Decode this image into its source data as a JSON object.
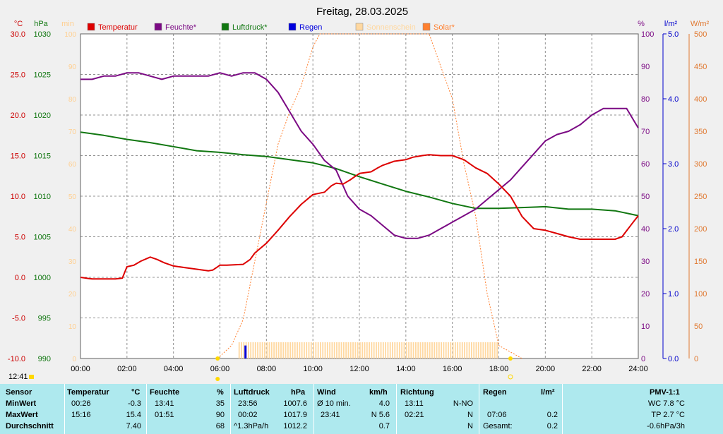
{
  "title": "Freitag, 28.03.2025",
  "axes": {
    "left_units": [
      "°C",
      "hPa",
      "min"
    ],
    "right_units": [
      "%",
      "l/m²",
      "W/m²"
    ],
    "temp_ticks": [
      "30.0",
      "25.0",
      "20.0",
      "15.0",
      "10.0",
      "5.0",
      "0.0",
      "-5.0",
      "-10.0"
    ],
    "pressure_ticks": [
      "1030",
      "1025",
      "1020",
      "1015",
      "1010",
      "1005",
      "1000",
      "995",
      "990"
    ],
    "min_ticks": [
      "100",
      "90",
      "80",
      "70",
      "60",
      "50",
      "40",
      "30",
      "20",
      "10",
      "0"
    ],
    "humidity_ticks": [
      "100",
      "90",
      "80",
      "70",
      "60",
      "50",
      "40",
      "30",
      "20",
      "10",
      "0"
    ],
    "rain_ticks": [
      "5.0",
      "4.0",
      "3.0",
      "2.0",
      "1.0",
      "0.0"
    ],
    "solar_ticks": [
      "500",
      "450",
      "400",
      "350",
      "300",
      "250",
      "200",
      "150",
      "100",
      "50",
      "0"
    ],
    "time_ticks": [
      "00:00",
      "02:00",
      "04:00",
      "06:00",
      "08:00",
      "10:00",
      "12:00",
      "14:00",
      "16:00",
      "18:00",
      "20:00",
      "22:00",
      "24:00"
    ]
  },
  "colors": {
    "temperature": "#dd0000",
    "humidity": "#7b0a84",
    "pressure": "#117711",
    "rain": "#0000dd",
    "sunshine": "#ffd8a0",
    "solar": "#ff8030",
    "grid": "#909090",
    "plot_bg": "#ffffff",
    "table_bg": "#aee9ee"
  },
  "legend": [
    {
      "label": "Temperatur",
      "color": "#dd0000"
    },
    {
      "label": "Feuchte*",
      "color": "#7b0a84"
    },
    {
      "label": "Luftdruck*",
      "color": "#117711"
    },
    {
      "label": "Regen",
      "color": "#0000dd"
    },
    {
      "label": "Sonnenschein",
      "color": "#ffd8a0"
    },
    {
      "label": "Solar*",
      "color": "#ff8030"
    }
  ],
  "time_label": "12:41",
  "chart_data": {
    "type": "line",
    "title": "Freitag, 28.03.2025",
    "x_unit": "hour",
    "xlim": [
      0,
      24
    ],
    "grid": true,
    "legend_position": "top",
    "series": [
      {
        "name": "Temperatur",
        "unit": "°C",
        "axis": "left",
        "ylim": [
          -10,
          30
        ],
        "x": [
          0,
          0.5,
          1,
          1.5,
          1.8,
          2,
          2.3,
          2.6,
          3,
          3.3,
          3.6,
          4,
          4.5,
          5,
          5.5,
          5.7,
          6,
          6.3,
          7,
          7.3,
          7.5,
          8,
          8.5,
          9,
          9.5,
          10,
          10.5,
          10.8,
          11,
          11.3,
          11.6,
          12,
          12.5,
          12.8,
          13,
          13.5,
          14,
          14.3,
          14.7,
          15,
          15.5,
          16,
          16.5,
          17,
          17.5,
          18,
          18.5,
          19,
          19.5,
          20,
          20.5,
          21,
          21.5,
          22,
          22.5,
          23,
          23.3,
          23.7,
          24
        ],
        "values": [
          0.0,
          -0.2,
          -0.2,
          -0.2,
          -0.1,
          1.3,
          1.5,
          2.0,
          2.5,
          2.2,
          1.8,
          1.4,
          1.2,
          1.0,
          0.8,
          0.9,
          1.5,
          1.5,
          1.6,
          2.2,
          3.0,
          4.2,
          5.8,
          7.5,
          9.0,
          10.2,
          10.5,
          11.3,
          11.6,
          11.5,
          12.0,
          12.8,
          13.0,
          13.5,
          13.8,
          14.3,
          14.5,
          14.8,
          15.0,
          15.1,
          15.0,
          15.0,
          14.5,
          13.5,
          12.8,
          11.5,
          10.0,
          7.5,
          6.0,
          5.8,
          5.4,
          5.0,
          4.7,
          4.7,
          4.7,
          4.7,
          5.0,
          6.5,
          7.6
        ]
      },
      {
        "name": "Feuchte*",
        "unit": "%",
        "axis": "right",
        "ylim": [
          0,
          100
        ],
        "x": [
          0,
          0.5,
          1,
          1.5,
          2,
          2.5,
          3,
          3.5,
          4,
          4.5,
          5,
          5.5,
          6,
          6.5,
          7,
          7.5,
          8,
          8.5,
          9,
          9.5,
          10,
          10.5,
          11,
          11.5,
          12,
          12.5,
          13,
          13.5,
          14,
          14.5,
          15,
          15.5,
          16,
          16.5,
          17,
          17.5,
          18,
          18.5,
          19,
          19.5,
          20,
          20.5,
          21,
          21.5,
          22,
          22.5,
          23,
          23.5,
          24
        ],
        "values": [
          86,
          86,
          87,
          87,
          88,
          88,
          87,
          86,
          87,
          87,
          87,
          87,
          88,
          87,
          88,
          88,
          86,
          82,
          76,
          70,
          66,
          61,
          58,
          50,
          46,
          44,
          41,
          38,
          37,
          37,
          38,
          40,
          42,
          44,
          46,
          49,
          52,
          55,
          59,
          63,
          67,
          69,
          70,
          72,
          75,
          77,
          77,
          77,
          71
        ]
      },
      {
        "name": "Luftdruck*",
        "unit": "hPa",
        "axis": "left",
        "ylim": [
          990,
          1030
        ],
        "x": [
          0,
          1,
          2,
          3,
          4,
          5,
          6,
          7,
          8,
          9,
          10,
          11,
          12,
          13,
          14,
          15,
          16,
          17,
          18,
          19,
          20,
          21,
          22,
          23,
          24
        ],
        "values": [
          1017.9,
          1017.5,
          1017.0,
          1016.6,
          1016.1,
          1015.6,
          1015.4,
          1015.1,
          1014.9,
          1014.5,
          1014.1,
          1013.4,
          1012.4,
          1011.5,
          1010.6,
          1009.9,
          1009.1,
          1008.5,
          1008.5,
          1008.6,
          1008.7,
          1008.4,
          1008.4,
          1008.2,
          1007.6
        ]
      },
      {
        "name": "Solar*",
        "unit": "W/m²",
        "axis": "right",
        "ylim": [
          0,
          500
        ],
        "x": [
          5.9,
          6.5,
          7,
          7.5,
          8,
          8.5,
          9,
          9.5,
          10,
          10.3,
          15,
          15.4,
          16,
          16.5,
          17,
          17.5,
          18,
          18.5,
          19
        ],
        "values": [
          0,
          20,
          60,
          150,
          240,
          330,
          380,
          420,
          480,
          500,
          500,
          460,
          400,
          300,
          220,
          100,
          20,
          10,
          0
        ]
      },
      {
        "name": "Sonnenschein",
        "unit": "min",
        "axis": "left",
        "ylim": [
          0,
          100
        ],
        "x_range": [
          6.8,
          17.9
        ],
        "value": 5
      },
      {
        "name": "Regen",
        "unit": "l/m²",
        "axis": "right",
        "ylim": [
          0,
          5
        ],
        "x": [
          7.1
        ],
        "values": [
          0.2
        ]
      }
    ]
  },
  "table": {
    "headers": {
      "sensor": "Sensor",
      "temp": "Temperatur",
      "temp_unit": "°C",
      "hum": "Feuchte",
      "hum_unit": "%",
      "press": "Luftdruck",
      "press_unit": "hPa",
      "wind": "Wind",
      "wind_unit": "km/h",
      "dir": "Richtung",
      "rain": "Regen",
      "rain_unit": "l/m²",
      "pmv": "PMV-1:1"
    },
    "rows": {
      "min": {
        "label": "MinWert",
        "temp_time": "00:26",
        "temp_val": "-0.3",
        "hum_time": "13:41",
        "hum_val": "35",
        "press_time": "23:56",
        "press_val": "1007.6",
        "wind_time": "Ø 10 min.",
        "wind_val": "4.0",
        "dir_time": "13:11",
        "dir_val": "N-NO",
        "rain_time": "",
        "rain_val": "",
        "pmv": "WC 7.8 °C"
      },
      "max": {
        "label": "MaxWert",
        "temp_time": "15:16",
        "temp_val": "15.4",
        "hum_time": "01:51",
        "hum_val": "90",
        "press_time": "00:02",
        "press_val": "1017.9",
        "wind_time": "23:41",
        "wind_val": "N 5.6",
        "dir_time": "02:21",
        "dir_val": "N",
        "rain_time": "07:06",
        "rain_val": "0.2",
        "pmv": "TP 2.7 °C"
      },
      "avg": {
        "label": "Durchschnitt",
        "temp_time": "",
        "temp_val": "7.40",
        "hum_time": "",
        "hum_val": "68",
        "press_time": "^1.3hPa/h",
        "press_val": "1012.2",
        "wind_time": "",
        "wind_val": "0.7",
        "dir_time": "",
        "dir_val": "N",
        "rain_time": "Gesamt:",
        "rain_val": "0.2",
        "pmv": "-0.6hPa/3h"
      }
    }
  }
}
